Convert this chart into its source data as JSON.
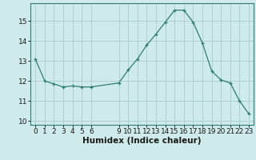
{
  "x": [
    0,
    1,
    2,
    3,
    4,
    5,
    6,
    9,
    10,
    11,
    12,
    13,
    14,
    15,
    16,
    17,
    18,
    19,
    20,
    21,
    22,
    23
  ],
  "y": [
    13.1,
    12.0,
    11.85,
    11.7,
    11.75,
    11.7,
    11.7,
    11.9,
    12.55,
    13.1,
    13.8,
    14.35,
    14.95,
    15.55,
    15.55,
    14.95,
    13.9,
    12.5,
    12.05,
    11.9,
    11.0,
    10.35
  ],
  "line_color": "#2e7d6e",
  "marker": "+",
  "marker_size": 3.5,
  "bg_color": "#ceeaea",
  "grid_color": "#aed0d0",
  "xlabel": "Humidex (Indice chaleur)",
  "xlim": [
    -0.5,
    23.5
  ],
  "ylim": [
    9.8,
    15.9
  ],
  "yticks": [
    10,
    11,
    12,
    13,
    14,
    15
  ],
  "xticks": [
    0,
    1,
    2,
    3,
    4,
    5,
    6,
    9,
    10,
    11,
    12,
    13,
    14,
    15,
    16,
    17,
    18,
    19,
    20,
    21,
    22,
    23
  ],
  "tick_fontsize": 6.5,
  "xlabel_fontsize": 7.5
}
